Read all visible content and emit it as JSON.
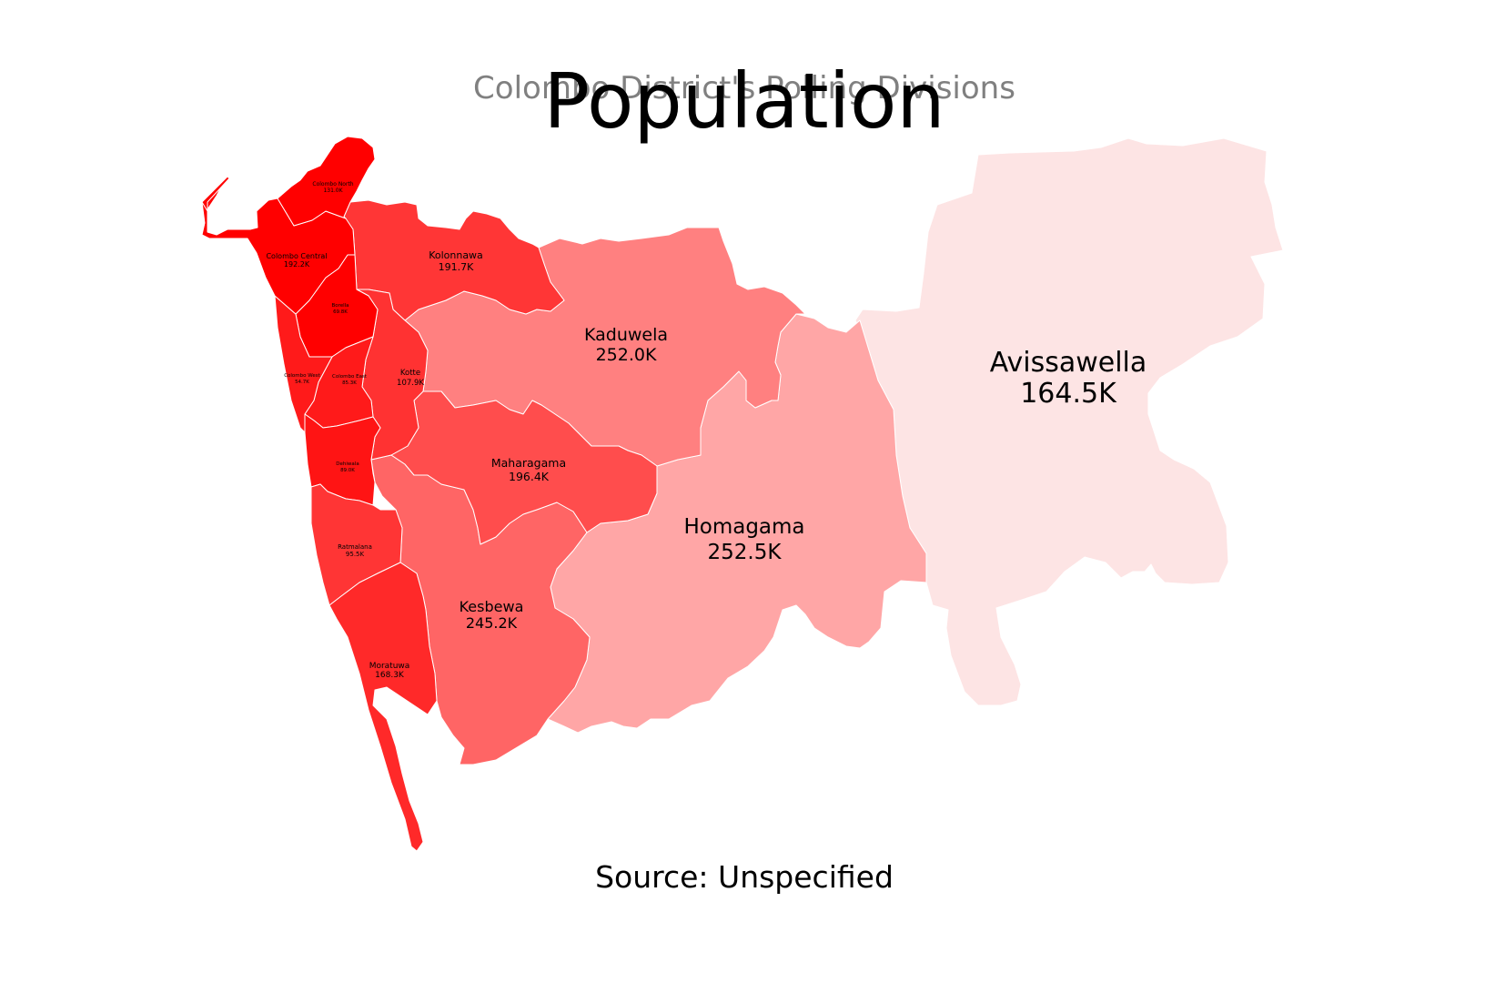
{
  "title": "Population",
  "subtitle": "Colombo District's Polling Divisions",
  "source": "Source: Unspecified",
  "color_scale": {
    "low": "#fde4e4",
    "high": "#ff0000"
  },
  "regions": [
    {
      "id": "colombo-north",
      "name": "Colombo North",
      "value": "131.0K",
      "intensity": 1.0,
      "color": "#ff0000"
    },
    {
      "id": "colombo-central",
      "name": "Colombo Central",
      "value": "192.2K",
      "intensity": 1.0,
      "color": "#ff0000"
    },
    {
      "id": "borella",
      "name": "Borella",
      "value": "69.8K",
      "intensity": 1.0,
      "color": "#ff0000"
    },
    {
      "id": "colombo-west",
      "name": "Colombo West",
      "value": "54.7K",
      "intensity": 0.95,
      "color": "#ff1a1a"
    },
    {
      "id": "colombo-east",
      "name": "Colombo East",
      "value": "85.3K",
      "intensity": 0.95,
      "color": "#ff1a1a"
    },
    {
      "id": "dehiwala",
      "name": "Dehiwala",
      "value": "89.0K",
      "intensity": 0.95,
      "color": "#ff1414"
    },
    {
      "id": "ratmalana",
      "name": "Ratmalana",
      "value": "95.5K",
      "intensity": 0.85,
      "color": "#ff3535"
    },
    {
      "id": "moratuwa",
      "name": "Moratuwa",
      "value": "168.3K",
      "intensity": 0.9,
      "color": "#ff2929"
    },
    {
      "id": "kotte",
      "name": "Kotte",
      "value": "107.9K",
      "intensity": 0.85,
      "color": "#ff3232"
    },
    {
      "id": "kolonnawa",
      "name": "Kolonnawa",
      "value": "191.7K",
      "intensity": 0.85,
      "color": "#ff3636"
    },
    {
      "id": "maharagama",
      "name": "Maharagama",
      "value": "196.4K",
      "intensity": 0.75,
      "color": "#ff4d4d"
    },
    {
      "id": "kesbewa",
      "name": "Kesbewa",
      "value": "245.2K",
      "intensity": 0.65,
      "color": "#ff6565"
    },
    {
      "id": "kaduwela",
      "name": "Kaduwela",
      "value": "252.0K",
      "intensity": 0.55,
      "color": "#ff8080"
    },
    {
      "id": "homagama",
      "name": "Homagama",
      "value": "252.5K",
      "intensity": 0.4,
      "color": "#ffa6a6"
    },
    {
      "id": "avissawella",
      "name": "Avissawella",
      "value": "164.5K",
      "intensity": 0.1,
      "color": "#fde4e4"
    }
  ]
}
